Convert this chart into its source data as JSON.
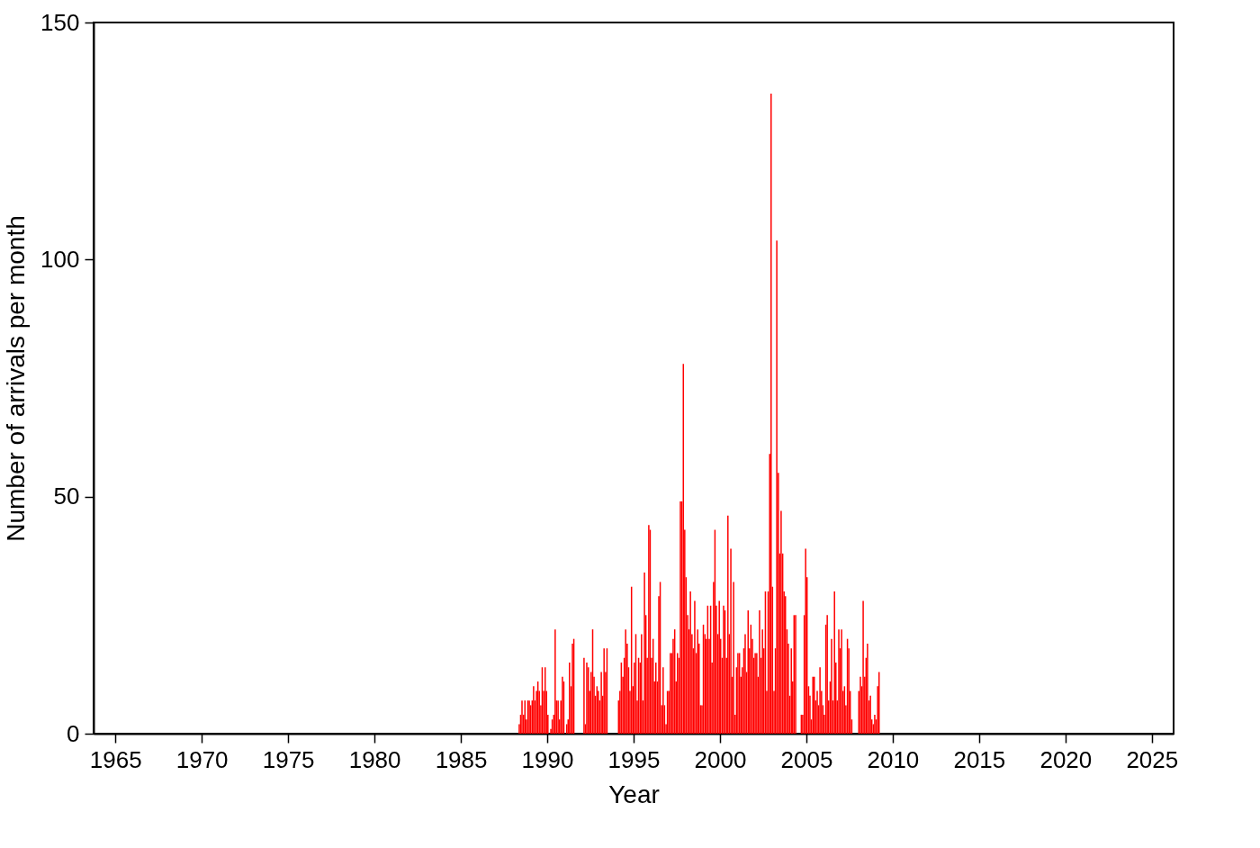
{
  "chart_data": {
    "type": "bar",
    "xlabel": "Year",
    "ylabel": "Number of arrivals per month",
    "xlim": [
      1964,
      2026
    ],
    "xticks": [
      1965,
      1970,
      1975,
      1980,
      1985,
      1990,
      1995,
      2000,
      2005,
      2010,
      2015,
      2020,
      2025
    ],
    "ylim": [
      0,
      150
    ],
    "yticks": [
      0,
      50,
      100,
      150
    ],
    "grid": false,
    "series": [
      {
        "color": "#ff0000",
        "x": [
          1988.38,
          1988.46,
          1988.54,
          1988.63,
          1988.71,
          1988.79,
          1988.88,
          1988.96,
          1989.04,
          1989.13,
          1989.21,
          1989.29,
          1989.38,
          1989.46,
          1989.54,
          1989.63,
          1989.71,
          1989.79,
          1989.88,
          1989.96,
          1990.04,
          1990.13,
          1990.21,
          1990.29,
          1990.38,
          1990.46,
          1990.54,
          1990.63,
          1990.71,
          1990.79,
          1990.88,
          1990.96,
          1991.04,
          1991.13,
          1991.21,
          1991.29,
          1991.38,
          1991.46,
          1991.54,
          1991.63,
          1991.71,
          1991.79,
          1991.88,
          1991.96,
          1992.04,
          1992.13,
          1992.21,
          1992.29,
          1992.38,
          1992.46,
          1992.54,
          1992.63,
          1992.71,
          1992.79,
          1992.88,
          1992.96,
          1993.04,
          1993.13,
          1993.21,
          1993.29,
          1993.38,
          1993.46,
          1993.54,
          1993.63,
          1993.71,
          1993.79,
          1993.88,
          1993.96,
          1994.04,
          1994.13,
          1994.21,
          1994.29,
          1994.38,
          1994.46,
          1994.54,
          1994.63,
          1994.71,
          1994.79,
          1994.88,
          1994.96,
          1995.04,
          1995.13,
          1995.21,
          1995.29,
          1995.38,
          1995.46,
          1995.54,
          1995.63,
          1995.71,
          1995.79,
          1995.88,
          1995.96,
          1996.04,
          1996.13,
          1996.21,
          1996.29,
          1996.38,
          1996.46,
          1996.54,
          1996.63,
          1996.71,
          1996.79,
          1996.88,
          1996.96,
          1997.04,
          1997.13,
          1997.21,
          1997.29,
          1997.38,
          1997.46,
          1997.54,
          1997.63,
          1997.71,
          1997.79,
          1997.88,
          1997.96,
          1998.04,
          1998.13,
          1998.21,
          1998.29,
          1998.38,
          1998.46,
          1998.54,
          1998.63,
          1998.71,
          1998.79,
          1998.88,
          1998.96,
          1999.04,
          1999.13,
          1999.21,
          1999.29,
          1999.38,
          1999.46,
          1999.54,
          1999.63,
          1999.71,
          1999.79,
          1999.88,
          1999.96,
          2000.04,
          2000.13,
          2000.21,
          2000.29,
          2000.38,
          2000.46,
          2000.54,
          2000.63,
          2000.71,
          2000.79,
          2000.88,
          2000.96,
          2001.04,
          2001.13,
          2001.21,
          2001.29,
          2001.38,
          2001.46,
          2001.54,
          2001.63,
          2001.71,
          2001.79,
          2001.88,
          2001.96,
          2002.04,
          2002.13,
          2002.21,
          2002.29,
          2002.38,
          2002.46,
          2002.54,
          2002.63,
          2002.71,
          2002.79,
          2002.88,
          2002.96,
          2003.04,
          2003.13,
          2003.21,
          2003.29,
          2003.38,
          2003.46,
          2003.54,
          2003.63,
          2003.71,
          2003.79,
          2003.88,
          2003.96,
          2004.04,
          2004.13,
          2004.21,
          2004.29,
          2004.38,
          2004.46,
          2004.54,
          2004.63,
          2004.71,
          2004.79,
          2004.88,
          2004.96,
          2005.04,
          2005.13,
          2005.21,
          2005.29,
          2005.38,
          2005.46,
          2005.54,
          2005.63,
          2005.71,
          2005.79,
          2005.88,
          2005.96,
          2006.04,
          2006.13,
          2006.21,
          2006.29,
          2006.38,
          2006.46,
          2006.54,
          2006.63,
          2006.71,
          2006.79,
          2006.88,
          2006.96,
          2007.04,
          2007.13,
          2007.21,
          2007.29,
          2007.38,
          2007.46,
          2007.54,
          2007.63,
          2007.71,
          2007.79,
          2007.88,
          2007.96,
          2008.04,
          2008.13,
          2008.21,
          2008.29,
          2008.38,
          2008.46,
          2008.54,
          2008.63,
          2008.71,
          2008.79,
          2008.88,
          2008.96,
          2009.04,
          2009.13,
          2009.21
        ],
        "values": [
          2,
          4,
          7,
          4,
          7,
          3,
          7,
          7,
          6,
          7,
          10,
          7,
          9,
          11,
          9,
          6,
          14,
          9,
          14,
          9,
          4,
          0,
          1,
          3,
          4,
          22,
          7,
          7,
          3,
          7,
          12,
          11,
          0,
          2,
          3,
          15,
          10,
          19,
          20,
          0,
          0,
          0,
          0,
          0,
          0,
          16,
          2,
          15,
          14,
          9,
          13,
          22,
          12,
          8,
          10,
          9,
          7,
          13,
          8,
          18,
          13,
          18,
          0,
          0,
          0,
          0,
          0,
          0,
          0,
          7,
          9,
          15,
          12,
          16,
          22,
          19,
          14,
          9,
          31,
          10,
          15,
          21,
          7,
          16,
          15,
          21,
          7,
          34,
          25,
          16,
          44,
          43,
          16,
          20,
          11,
          15,
          11,
          29,
          32,
          6,
          14,
          6,
          2,
          9,
          9,
          17,
          17,
          20,
          22,
          11,
          17,
          16,
          49,
          49,
          78,
          43,
          33,
          25,
          22,
          30,
          21,
          18,
          28,
          17,
          22,
          19,
          6,
          6,
          23,
          21,
          20,
          27,
          20,
          27,
          15,
          32,
          43,
          27,
          21,
          28,
          20,
          16,
          27,
          26,
          16,
          46,
          21,
          39,
          12,
          32,
          4,
          14,
          17,
          17,
          12,
          14,
          18,
          21,
          13,
          26,
          18,
          23,
          20,
          16,
          17,
          17,
          12,
          26,
          16,
          22,
          18,
          30,
          9,
          30,
          59,
          135,
          31,
          9,
          18,
          104,
          55,
          38,
          47,
          38,
          30,
          29,
          22,
          19,
          8,
          18,
          11,
          25,
          25,
          0,
          0,
          0,
          4,
          4,
          25,
          39,
          33,
          10,
          8,
          3,
          12,
          12,
          7,
          9,
          6,
          14,
          9,
          6,
          4,
          23,
          25,
          7,
          11,
          20,
          7,
          30,
          15,
          7,
          22,
          18,
          22,
          9,
          10,
          6,
          20,
          18,
          9,
          3,
          0,
          0,
          0,
          0,
          9,
          12,
          10,
          28,
          12,
          16,
          19,
          7,
          8,
          3,
          2,
          4,
          3,
          10,
          13
        ]
      }
    ]
  }
}
